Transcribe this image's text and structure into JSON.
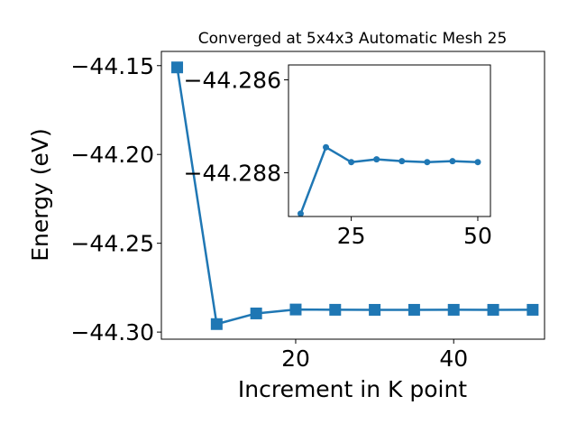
{
  "chart_data": [
    {
      "type": "line",
      "title": "Converged at 5x4x3 Automatic Mesh 25",
      "xlabel": "Increment in K point",
      "ylabel": "Energy (eV)",
      "xlim": [
        3,
        51.5
      ],
      "ylim": [
        -44.304,
        -44.142
      ],
      "xticks": [
        20,
        40
      ],
      "xtick_labels": [
        "20",
        "40"
      ],
      "yticks": [
        -44.15,
        -44.2,
        -44.25,
        -44.3
      ],
      "ytick_labels": [
        "−44.15",
        "−44.20",
        "−44.25",
        "−44.30"
      ],
      "marker": "square",
      "color": "#1f77b4",
      "series": [
        {
          "x": [
            5,
            10,
            15,
            20,
            25,
            30,
            35,
            40,
            45,
            50
          ],
          "y": [
            -44.151,
            -44.2955,
            -44.2895,
            -44.2873,
            -44.28745,
            -44.28748,
            -44.28747,
            -44.28746,
            -44.28747,
            -44.28746
          ]
        }
      ]
    },
    {
      "type": "line",
      "title": "",
      "xlabel": "",
      "ylabel": "",
      "xlim": [
        12.6,
        52.5
      ],
      "ylim": [
        -44.28894,
        -44.28568
      ],
      "xticks": [
        25,
        50
      ],
      "xtick_labels": [
        "25",
        "50"
      ],
      "yticks": [
        -44.288,
        -44.286
      ],
      "ytick_labels": [
        "−44.288",
        "−44.286"
      ],
      "marker": "circle",
      "color": "#1f77b4",
      "series": [
        {
          "x": [
            15,
            20,
            25,
            30,
            35,
            40,
            45,
            50
          ],
          "y": [
            -44.28888,
            -44.28745,
            -44.28777,
            -44.28771,
            -44.28775,
            -44.28777,
            -44.28775,
            -44.28777
          ]
        }
      ]
    }
  ]
}
